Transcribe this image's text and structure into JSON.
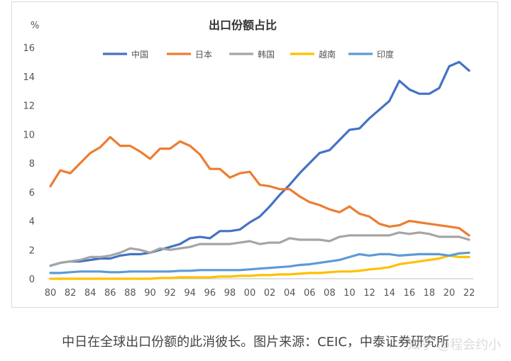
{
  "caption": "中日在全球出口份额的此消彼长。图片来源：CEIC，中泰证券研究所",
  "watermark": "知乎 @程会约小",
  "chart_data": {
    "type": "line",
    "title": "出口份额占比",
    "ylabel": "%",
    "xlabel": "",
    "ylim": [
      0,
      16
    ],
    "yticks": [
      0,
      2,
      4,
      6,
      8,
      10,
      12,
      14,
      16
    ],
    "xticks": [
      "80",
      "82",
      "84",
      "86",
      "88",
      "90",
      "92",
      "94",
      "96",
      "98",
      "00",
      "02",
      "04",
      "06",
      "08",
      "10",
      "12",
      "14",
      "16",
      "18",
      "20",
      "22"
    ],
    "grid": false,
    "legend_position": "top",
    "x": [
      1980,
      1981,
      1982,
      1983,
      1984,
      1985,
      1986,
      1987,
      1988,
      1989,
      1990,
      1991,
      1992,
      1993,
      1994,
      1995,
      1996,
      1997,
      1998,
      1999,
      2000,
      2001,
      2002,
      2003,
      2004,
      2005,
      2006,
      2007,
      2008,
      2009,
      2010,
      2011,
      2012,
      2013,
      2014,
      2015,
      2016,
      2017,
      2018,
      2019,
      2020,
      2021,
      2022
    ],
    "series": [
      {
        "name": "中国",
        "color": "#4472C4",
        "values": [
          0.9,
          1.1,
          1.2,
          1.2,
          1.3,
          1.4,
          1.4,
          1.6,
          1.7,
          1.7,
          1.8,
          2.0,
          2.2,
          2.4,
          2.8,
          2.9,
          2.8,
          3.3,
          3.3,
          3.4,
          3.9,
          4.3,
          5.0,
          5.8,
          6.5,
          7.3,
          8.0,
          8.7,
          8.9,
          9.6,
          10.3,
          10.4,
          11.1,
          11.7,
          12.3,
          13.7,
          13.1,
          12.8,
          12.8,
          13.2,
          14.7,
          15.0,
          14.4
        ]
      },
      {
        "name": "日本",
        "color": "#ED7D31",
        "values": [
          6.4,
          7.5,
          7.3,
          8.0,
          8.7,
          9.1,
          9.8,
          9.2,
          9.2,
          8.8,
          8.3,
          9.0,
          9.0,
          9.5,
          9.2,
          8.6,
          7.6,
          7.6,
          7.0,
          7.3,
          7.4,
          6.5,
          6.4,
          6.2,
          6.2,
          5.7,
          5.3,
          5.1,
          4.8,
          4.6,
          5.0,
          4.5,
          4.3,
          3.8,
          3.6,
          3.7,
          4.0,
          3.9,
          3.8,
          3.7,
          3.6,
          3.5,
          3.0
        ]
      },
      {
        "name": "韩国",
        "color": "#A5A5A5",
        "values": [
          0.9,
          1.1,
          1.2,
          1.3,
          1.5,
          1.5,
          1.6,
          1.8,
          2.1,
          2.0,
          1.8,
          2.1,
          2.0,
          2.1,
          2.2,
          2.4,
          2.4,
          2.4,
          2.4,
          2.5,
          2.6,
          2.4,
          2.5,
          2.5,
          2.8,
          2.7,
          2.7,
          2.7,
          2.6,
          2.9,
          3.0,
          3.0,
          3.0,
          3.0,
          3.0,
          3.2,
          3.1,
          3.2,
          3.1,
          2.9,
          2.9,
          2.9,
          2.7
        ]
      },
      {
        "name": "越南",
        "color": "#FFC000",
        "values": [
          0.0,
          0.0,
          0.0,
          0.0,
          0.0,
          0.0,
          0.0,
          0.0,
          0.0,
          0.0,
          0.0,
          0.05,
          0.05,
          0.1,
          0.1,
          0.1,
          0.1,
          0.15,
          0.15,
          0.2,
          0.2,
          0.25,
          0.25,
          0.3,
          0.3,
          0.35,
          0.4,
          0.4,
          0.45,
          0.5,
          0.5,
          0.55,
          0.65,
          0.7,
          0.8,
          1.0,
          1.1,
          1.2,
          1.3,
          1.4,
          1.6,
          1.5,
          1.5
        ]
      },
      {
        "name": "印度",
        "color": "#5B9BD5",
        "values": [
          0.4,
          0.4,
          0.45,
          0.5,
          0.5,
          0.5,
          0.45,
          0.45,
          0.5,
          0.5,
          0.5,
          0.5,
          0.5,
          0.55,
          0.55,
          0.6,
          0.6,
          0.6,
          0.6,
          0.6,
          0.65,
          0.7,
          0.75,
          0.8,
          0.85,
          0.95,
          1.0,
          1.1,
          1.2,
          1.3,
          1.5,
          1.7,
          1.6,
          1.7,
          1.7,
          1.6,
          1.65,
          1.7,
          1.7,
          1.7,
          1.6,
          1.75,
          1.8
        ]
      }
    ]
  }
}
